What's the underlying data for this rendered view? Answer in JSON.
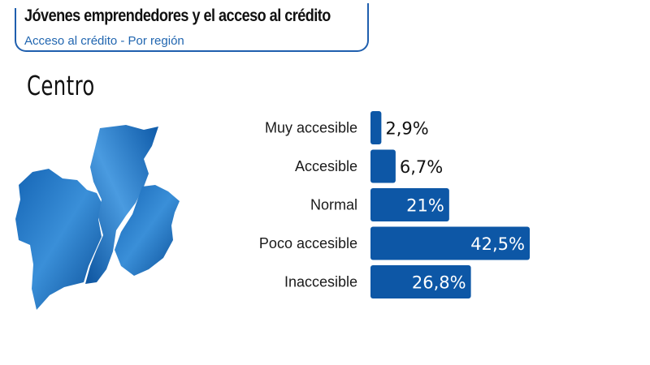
{
  "header": {
    "title": "Jóvenes emprendedores y el acceso al crédito",
    "subtitle": "Acceso al crédito - Por región"
  },
  "region_name": "Centro",
  "colors": {
    "bar": "#0d57a6",
    "map_light": "#2f86d4",
    "map_dark": "#0a4c93",
    "frame": "#1f5fae"
  },
  "chart_data": {
    "type": "bar",
    "orientation": "horizontal",
    "categories": [
      "Muy accesible",
      "Accesible",
      "Normal",
      "Poco accesible",
      "Inaccesible"
    ],
    "values": [
      2.9,
      6.7,
      21,
      42.5,
      26.8
    ],
    "value_labels": [
      "2,9%",
      "6,7%",
      "21%",
      "42,5%",
      "26,8%"
    ],
    "xlim": [
      0,
      45
    ],
    "grid": false,
    "legend": false
  }
}
